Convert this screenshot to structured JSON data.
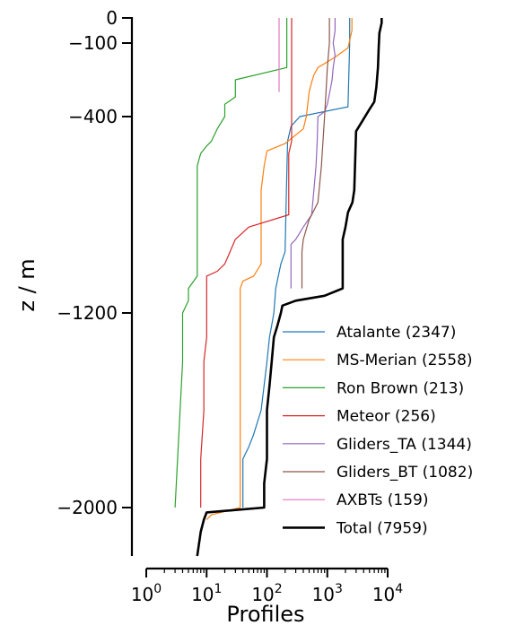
{
  "chart_data": {
    "type": "line",
    "xlabel": "Profiles",
    "ylabel": "z / m",
    "x_scale": "log",
    "xlim": [
      1,
      10000
    ],
    "ylim": [
      -2200,
      0
    ],
    "yticks": [
      0,
      -100,
      -400,
      -1200,
      -2000
    ],
    "ytick_labels": [
      "0",
      "−100",
      "−400",
      "−1200",
      "−2000"
    ],
    "xticks": [
      1,
      10,
      100,
      1000,
      10000
    ],
    "xtick_bases": [
      "10",
      "10",
      "10",
      "10",
      "10"
    ],
    "xtick_exps": [
      "0",
      "1",
      "2",
      "3",
      "4"
    ],
    "legend_position": "lower-right",
    "grid": false,
    "series": [
      {
        "name": "Atalante (2347)",
        "color": "#1f77b4",
        "width": 1.2,
        "points": [
          [
            2347,
            0
          ],
          [
            2347,
            -100
          ],
          [
            2200,
            -360
          ],
          [
            350,
            -400
          ],
          [
            250,
            -440
          ],
          [
            220,
            -500
          ],
          [
            210,
            -700
          ],
          [
            200,
            -950
          ],
          [
            170,
            -1000
          ],
          [
            140,
            -1100
          ],
          [
            130,
            -1200
          ],
          [
            120,
            -1250
          ],
          [
            110,
            -1300
          ],
          [
            100,
            -1400
          ],
          [
            80,
            -1600
          ],
          [
            60,
            -1700
          ],
          [
            50,
            -1750
          ],
          [
            40,
            -1800
          ],
          [
            40,
            -2000
          ]
        ]
      },
      {
        "name": "MS-Merian (2558)",
        "color": "#ff7f0e",
        "width": 1.2,
        "points": [
          [
            2558,
            0
          ],
          [
            2558,
            -50
          ],
          [
            2200,
            -120
          ],
          [
            1300,
            -160
          ],
          [
            700,
            -200
          ],
          [
            600,
            -230
          ],
          [
            550,
            -260
          ],
          [
            500,
            -300
          ],
          [
            450,
            -400
          ],
          [
            400,
            -450
          ],
          [
            200,
            -510
          ],
          [
            100,
            -540
          ],
          [
            90,
            -600
          ],
          [
            80,
            -700
          ],
          [
            80,
            -1000
          ],
          [
            60,
            -1050
          ],
          [
            40,
            -1070
          ],
          [
            36,
            -1100
          ],
          [
            36,
            -2000
          ],
          [
            12,
            -2030
          ],
          [
            10,
            -2050
          ]
        ]
      },
      {
        "name": "Ron Brown (213)",
        "color": "#2ca02c",
        "width": 1.2,
        "points": [
          [
            213,
            0
          ],
          [
            213,
            -200
          ],
          [
            30,
            -250
          ],
          [
            30,
            -320
          ],
          [
            20,
            -350
          ],
          [
            20,
            -400
          ],
          [
            15,
            -450
          ],
          [
            12,
            -500
          ],
          [
            10,
            -520
          ],
          [
            8,
            -550
          ],
          [
            7,
            -600
          ],
          [
            7,
            -1050
          ],
          [
            5,
            -1100
          ],
          [
            5,
            -1150
          ],
          [
            4,
            -1200
          ],
          [
            4,
            -1400
          ],
          [
            3,
            -2000
          ]
        ]
      },
      {
        "name": "Meteor (256)",
        "color": "#d62728",
        "width": 1.2,
        "points": [
          [
            256,
            0
          ],
          [
            256,
            -500
          ],
          [
            230,
            -550
          ],
          [
            230,
            -800
          ],
          [
            50,
            -850
          ],
          [
            30,
            -900
          ],
          [
            20,
            -1000
          ],
          [
            15,
            -1030
          ],
          [
            10,
            -1050
          ],
          [
            10,
            -1300
          ],
          [
            9,
            -1400
          ],
          [
            9,
            -1600
          ],
          [
            8,
            -1800
          ],
          [
            8,
            -2000
          ]
        ]
      },
      {
        "name": "Gliders_TA (1344)",
        "color": "#9467bd",
        "width": 1.2,
        "points": [
          [
            1344,
            0
          ],
          [
            1344,
            -50
          ],
          [
            1250,
            -100
          ],
          [
            1344,
            -150
          ],
          [
            1250,
            -200
          ],
          [
            1200,
            -250
          ],
          [
            1100,
            -300
          ],
          [
            1000,
            -350
          ],
          [
            900,
            -380
          ],
          [
            700,
            -400
          ],
          [
            680,
            -500
          ],
          [
            650,
            -600
          ],
          [
            600,
            -700
          ],
          [
            550,
            -800
          ],
          [
            400,
            -850
          ],
          [
            300,
            -900
          ],
          [
            250,
            -920
          ],
          [
            250,
            -1100
          ]
        ]
      },
      {
        "name": "Gliders_BT (1082)",
        "color": "#8c564b",
        "width": 1.2,
        "points": [
          [
            1082,
            0
          ],
          [
            1082,
            -100
          ],
          [
            1000,
            -200
          ],
          [
            950,
            -300
          ],
          [
            900,
            -400
          ],
          [
            800,
            -600
          ],
          [
            700,
            -750
          ],
          [
            500,
            -820
          ],
          [
            400,
            -900
          ],
          [
            380,
            -950
          ],
          [
            380,
            -1100
          ]
        ]
      },
      {
        "name": "AXBTs (159)",
        "color": "#e377c2",
        "width": 1.2,
        "points": [
          [
            159,
            0
          ],
          [
            159,
            -300
          ]
        ]
      },
      {
        "name": "Total (7959)",
        "color": "#000000",
        "width": 2.6,
        "points": [
          [
            7959,
            0
          ],
          [
            7959,
            -20
          ],
          [
            7300,
            -60
          ],
          [
            7100,
            -120
          ],
          [
            6900,
            -200
          ],
          [
            6500,
            -280
          ],
          [
            6000,
            -340
          ],
          [
            5000,
            -370
          ],
          [
            4000,
            -410
          ],
          [
            3000,
            -460
          ],
          [
            2900,
            -580
          ],
          [
            2800,
            -700
          ],
          [
            2600,
            -750
          ],
          [
            2200,
            -790
          ],
          [
            2000,
            -850
          ],
          [
            1800,
            -900
          ],
          [
            1800,
            -1100
          ],
          [
            900,
            -1130
          ],
          [
            300,
            -1150
          ],
          [
            180,
            -1170
          ],
          [
            170,
            -1200
          ],
          [
            150,
            -1250
          ],
          [
            130,
            -1300
          ],
          [
            120,
            -1400
          ],
          [
            110,
            -1500
          ],
          [
            100,
            -1600
          ],
          [
            100,
            -1800
          ],
          [
            90,
            -1900
          ],
          [
            90,
            -2000
          ],
          [
            10,
            -2020
          ],
          [
            9,
            -2050
          ],
          [
            8,
            -2100
          ],
          [
            7,
            -2200
          ]
        ]
      }
    ]
  }
}
